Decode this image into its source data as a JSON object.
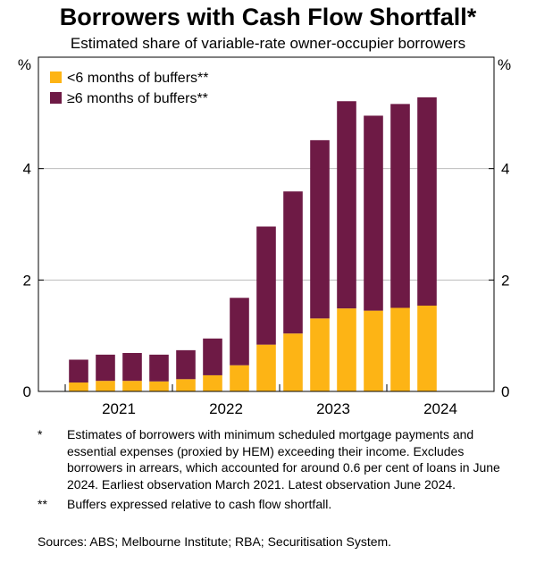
{
  "colors": {
    "short": "#fdb415",
    "long": "#6e1a45",
    "grid": "#bdbdbd"
  },
  "chart_data": {
    "type": "bar",
    "stacked": true,
    "title": "Borrowers with Cash Flow Shortfall*",
    "subtitle": "Estimated share of variable-rate owner-occupier borrowers",
    "ylabel_left": "%",
    "ylabel_right": "%",
    "ylim": [
      0,
      6
    ],
    "yticks": [
      0,
      2,
      4
    ],
    "grid": true,
    "x_start": 2021.0,
    "x_step": 0.25,
    "xlim": [
      2020.75,
      2025.0
    ],
    "xticks": [
      {
        "label": "2021",
        "center": 2021.5
      },
      {
        "label": "2022",
        "center": 2022.5
      },
      {
        "label": "2023",
        "center": 2023.5
      },
      {
        "label": "2024",
        "center": 2024.5
      }
    ],
    "year_separators": [
      2021.0,
      2022.0,
      2023.0,
      2024.0
    ],
    "legend_position": "top-left",
    "series": [
      {
        "name": "<6 months of buffers**",
        "color_key": "short",
        "values": [
          0.16,
          0.19,
          0.19,
          0.18,
          0.22,
          0.29,
          0.47,
          0.84,
          1.04,
          1.31,
          1.49,
          1.45,
          1.5,
          1.54
        ]
      },
      {
        "name": "≥6 months of buffers**",
        "color_key": "long",
        "values": [
          0.41,
          0.47,
          0.5,
          0.48,
          0.52,
          0.66,
          1.21,
          2.12,
          2.55,
          3.2,
          3.72,
          3.5,
          3.66,
          3.74
        ]
      }
    ]
  },
  "notes": [
    {
      "mark": "*",
      "text": "Estimates of borrowers with minimum scheduled mortgage payments and essential expenses (proxied by HEM) exceeding their income. Excludes borrowers in arrears, which accounted for around 0.6 per cent of loans in June 2024. Earliest observation March 2021. Latest observation June 2024."
    },
    {
      "mark": "**",
      "text": "Buffers expressed relative to cash flow shortfall."
    }
  ],
  "sources": "Sources: ABS; Melbourne Institute; RBA; Securitisation System."
}
